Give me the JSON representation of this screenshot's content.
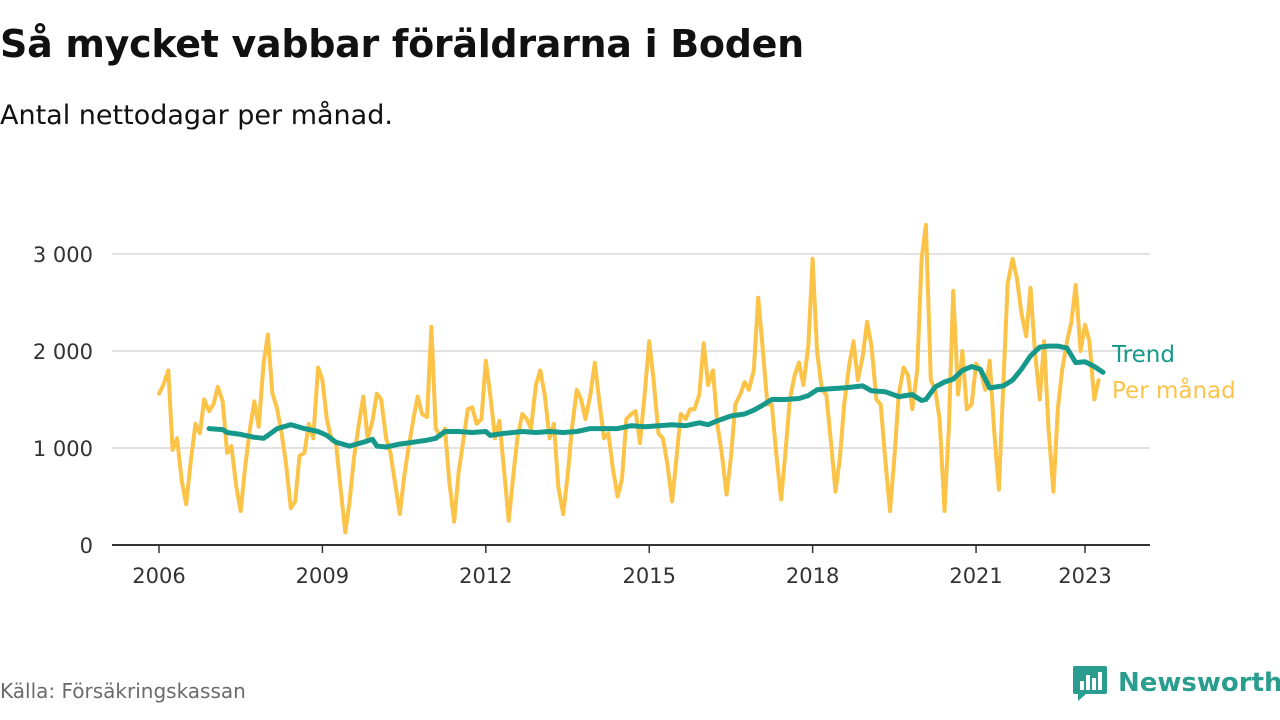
{
  "header": {
    "title": "Så mycket vabbar föräldrarna i Boden",
    "subtitle": "Antal nettodagar per månad."
  },
  "footer": {
    "source": "Källa: Försäkringskassan",
    "brand": "Newsworthy"
  },
  "colors": {
    "monthly": "#fbc348",
    "trend": "#16998a",
    "grid": "#d9d9d9",
    "axis": "#333333",
    "tick_text": "#333333",
    "brand": "#2a9d8f"
  },
  "chart_data": {
    "type": "line",
    "title": "Så mycket vabbar föräldrarna i Boden",
    "subtitle": "Antal nettodagar per månad.",
    "xlim": [
      2006.0,
      2024.0
    ],
    "ylim": [
      0,
      3300
    ],
    "x_ticks": [
      2006,
      2009,
      2012,
      2015,
      2018,
      2021,
      2023
    ],
    "x_tick_labels": [
      "2006",
      "2009",
      "2012",
      "2015",
      "2018",
      "2021",
      "2023"
    ],
    "y_ticks": [
      0,
      1000,
      2000,
      3000
    ],
    "y_tick_labels": [
      "0",
      "1 000",
      "2 000",
      "3 000"
    ],
    "grid": true,
    "legend": "line-end labels",
    "series": [
      {
        "name": "Per månad",
        "color": "#fbc348",
        "points": [
          [
            2006.0,
            1560
          ],
          [
            2006.08,
            1650
          ],
          [
            2006.17,
            1800
          ],
          [
            2006.25,
            980
          ],
          [
            2006.33,
            1100
          ],
          [
            2006.42,
            650
          ],
          [
            2006.5,
            420
          ],
          [
            2006.58,
            850
          ],
          [
            2006.67,
            1250
          ],
          [
            2006.75,
            1150
          ],
          [
            2006.83,
            1500
          ],
          [
            2006.92,
            1380
          ],
          [
            2007.0,
            1450
          ],
          [
            2007.08,
            1630
          ],
          [
            2007.17,
            1480
          ],
          [
            2007.25,
            950
          ],
          [
            2007.33,
            1020
          ],
          [
            2007.42,
            600
          ],
          [
            2007.5,
            350
          ],
          [
            2007.58,
            800
          ],
          [
            2007.67,
            1200
          ],
          [
            2007.75,
            1480
          ],
          [
            2007.83,
            1220
          ],
          [
            2007.92,
            1870
          ],
          [
            2008.0,
            2170
          ],
          [
            2008.08,
            1570
          ],
          [
            2008.17,
            1400
          ],
          [
            2008.25,
            1150
          ],
          [
            2008.33,
            850
          ],
          [
            2008.42,
            380
          ],
          [
            2008.5,
            450
          ],
          [
            2008.58,
            920
          ],
          [
            2008.67,
            950
          ],
          [
            2008.75,
            1250
          ],
          [
            2008.83,
            1100
          ],
          [
            2008.92,
            1830
          ],
          [
            2009.0,
            1700
          ],
          [
            2009.08,
            1300
          ],
          [
            2009.17,
            1080
          ],
          [
            2009.25,
            1050
          ],
          [
            2009.33,
            600
          ],
          [
            2009.42,
            130
          ],
          [
            2009.5,
            450
          ],
          [
            2009.58,
            900
          ],
          [
            2009.67,
            1250
          ],
          [
            2009.75,
            1530
          ],
          [
            2009.83,
            1100
          ],
          [
            2009.92,
            1280
          ],
          [
            2010.0,
            1560
          ],
          [
            2010.08,
            1500
          ],
          [
            2010.17,
            1100
          ],
          [
            2010.25,
            950
          ],
          [
            2010.33,
            650
          ],
          [
            2010.42,
            320
          ],
          [
            2010.5,
            700
          ],
          [
            2010.58,
            1000
          ],
          [
            2010.67,
            1300
          ],
          [
            2010.75,
            1530
          ],
          [
            2010.83,
            1350
          ],
          [
            2010.92,
            1320
          ],
          [
            2011.0,
            2250
          ],
          [
            2011.08,
            1200
          ],
          [
            2011.17,
            1120
          ],
          [
            2011.25,
            1200
          ],
          [
            2011.33,
            650
          ],
          [
            2011.42,
            240
          ],
          [
            2011.5,
            750
          ],
          [
            2011.58,
            1050
          ],
          [
            2011.67,
            1400
          ],
          [
            2011.75,
            1420
          ],
          [
            2011.83,
            1250
          ],
          [
            2011.92,
            1300
          ],
          [
            2012.0,
            1900
          ],
          [
            2012.08,
            1550
          ],
          [
            2012.17,
            1100
          ],
          [
            2012.25,
            1280
          ],
          [
            2012.33,
            800
          ],
          [
            2012.42,
            250
          ],
          [
            2012.5,
            700
          ],
          [
            2012.58,
            1100
          ],
          [
            2012.67,
            1350
          ],
          [
            2012.75,
            1300
          ],
          [
            2012.83,
            1200
          ],
          [
            2012.92,
            1650
          ],
          [
            2013.0,
            1800
          ],
          [
            2013.08,
            1550
          ],
          [
            2013.17,
            1100
          ],
          [
            2013.25,
            1250
          ],
          [
            2013.33,
            600
          ],
          [
            2013.42,
            320
          ],
          [
            2013.5,
            700
          ],
          [
            2013.58,
            1200
          ],
          [
            2013.67,
            1600
          ],
          [
            2013.75,
            1500
          ],
          [
            2013.83,
            1300
          ],
          [
            2013.92,
            1550
          ],
          [
            2014.0,
            1880
          ],
          [
            2014.08,
            1500
          ],
          [
            2014.17,
            1100
          ],
          [
            2014.25,
            1150
          ],
          [
            2014.33,
            800
          ],
          [
            2014.42,
            500
          ],
          [
            2014.5,
            680
          ],
          [
            2014.58,
            1300
          ],
          [
            2014.67,
            1350
          ],
          [
            2014.75,
            1380
          ],
          [
            2014.83,
            1050
          ],
          [
            2014.92,
            1580
          ],
          [
            2015.0,
            2100
          ],
          [
            2015.08,
            1700
          ],
          [
            2015.17,
            1150
          ],
          [
            2015.25,
            1100
          ],
          [
            2015.33,
            850
          ],
          [
            2015.42,
            450
          ],
          [
            2015.5,
            900
          ],
          [
            2015.58,
            1350
          ],
          [
            2015.67,
            1300
          ],
          [
            2015.75,
            1400
          ],
          [
            2015.83,
            1400
          ],
          [
            2015.92,
            1550
          ],
          [
            2016.0,
            2080
          ],
          [
            2016.08,
            1650
          ],
          [
            2016.17,
            1800
          ],
          [
            2016.25,
            1250
          ],
          [
            2016.33,
            950
          ],
          [
            2016.42,
            520
          ],
          [
            2016.5,
            900
          ],
          [
            2016.58,
            1450
          ],
          [
            2016.67,
            1550
          ],
          [
            2016.75,
            1680
          ],
          [
            2016.83,
            1600
          ],
          [
            2016.92,
            1800
          ],
          [
            2017.0,
            2550
          ],
          [
            2017.08,
            2050
          ],
          [
            2017.17,
            1450
          ],
          [
            2017.25,
            1450
          ],
          [
            2017.33,
            950
          ],
          [
            2017.42,
            470
          ],
          [
            2017.5,
            950
          ],
          [
            2017.58,
            1500
          ],
          [
            2017.67,
            1750
          ],
          [
            2017.75,
            1880
          ],
          [
            2017.83,
            1650
          ],
          [
            2017.92,
            2050
          ],
          [
            2018.0,
            2950
          ],
          [
            2018.08,
            2000
          ],
          [
            2018.17,
            1600
          ],
          [
            2018.25,
            1550
          ],
          [
            2018.33,
            1100
          ],
          [
            2018.42,
            550
          ],
          [
            2018.5,
            900
          ],
          [
            2018.58,
            1450
          ],
          [
            2018.67,
            1850
          ],
          [
            2018.75,
            2100
          ],
          [
            2018.83,
            1700
          ],
          [
            2018.92,
            1950
          ],
          [
            2019.0,
            2300
          ],
          [
            2019.08,
            2050
          ],
          [
            2019.17,
            1500
          ],
          [
            2019.25,
            1450
          ],
          [
            2019.33,
            900
          ],
          [
            2019.42,
            350
          ],
          [
            2019.5,
            900
          ],
          [
            2019.58,
            1550
          ],
          [
            2019.67,
            1830
          ],
          [
            2019.75,
            1750
          ],
          [
            2019.83,
            1400
          ],
          [
            2019.92,
            1800
          ],
          [
            2020.0,
            2950
          ],
          [
            2020.08,
            3300
          ],
          [
            2020.17,
            1700
          ],
          [
            2020.25,
            1600
          ],
          [
            2020.33,
            1300
          ],
          [
            2020.42,
            350
          ],
          [
            2020.5,
            1200
          ],
          [
            2020.58,
            2620
          ],
          [
            2020.67,
            1550
          ],
          [
            2020.75,
            2000
          ],
          [
            2020.83,
            1400
          ],
          [
            2020.92,
            1450
          ],
          [
            2021.0,
            1870
          ],
          [
            2021.08,
            1800
          ],
          [
            2021.17,
            1600
          ],
          [
            2021.25,
            1900
          ],
          [
            2021.33,
            1200
          ],
          [
            2021.42,
            570
          ],
          [
            2021.5,
            1650
          ],
          [
            2021.58,
            2700
          ],
          [
            2021.67,
            2950
          ],
          [
            2021.75,
            2750
          ],
          [
            2021.83,
            2400
          ],
          [
            2021.92,
            2150
          ],
          [
            2022.0,
            2650
          ],
          [
            2022.08,
            2000
          ],
          [
            2022.17,
            1500
          ],
          [
            2022.25,
            2100
          ],
          [
            2022.33,
            1200
          ],
          [
            2022.42,
            550
          ],
          [
            2022.5,
            1400
          ],
          [
            2022.58,
            1800
          ],
          [
            2022.67,
            2100
          ],
          [
            2022.75,
            2300
          ],
          [
            2022.83,
            2680
          ],
          [
            2022.92,
            2000
          ],
          [
            2023.0,
            2270
          ],
          [
            2023.08,
            2100
          ],
          [
            2023.17,
            1500
          ],
          [
            2023.25,
            1700
          ]
        ]
      },
      {
        "name": "Trend",
        "color": "#16998a",
        "points": [
          [
            2006.92,
            1200
          ],
          [
            2007.17,
            1190
          ],
          [
            2007.25,
            1160
          ],
          [
            2007.5,
            1140
          ],
          [
            2007.75,
            1110
          ],
          [
            2007.92,
            1100
          ],
          [
            2008.0,
            1130
          ],
          [
            2008.17,
            1200
          ],
          [
            2008.42,
            1240
          ],
          [
            2008.67,
            1200
          ],
          [
            2008.92,
            1170
          ],
          [
            2009.08,
            1130
          ],
          [
            2009.25,
            1060
          ],
          [
            2009.5,
            1020
          ],
          [
            2009.75,
            1060
          ],
          [
            2009.92,
            1090
          ],
          [
            2010.0,
            1020
          ],
          [
            2010.17,
            1010
          ],
          [
            2010.42,
            1040
          ],
          [
            2010.67,
            1060
          ],
          [
            2010.92,
            1080
          ],
          [
            2011.08,
            1100
          ],
          [
            2011.25,
            1170
          ],
          [
            2011.5,
            1170
          ],
          [
            2011.75,
            1160
          ],
          [
            2012.0,
            1170
          ],
          [
            2012.08,
            1130
          ],
          [
            2012.33,
            1150
          ],
          [
            2012.67,
            1170
          ],
          [
            2012.92,
            1160
          ],
          [
            2013.17,
            1170
          ],
          [
            2013.42,
            1160
          ],
          [
            2013.67,
            1170
          ],
          [
            2013.92,
            1200
          ],
          [
            2014.17,
            1200
          ],
          [
            2014.42,
            1200
          ],
          [
            2014.67,
            1230
          ],
          [
            2014.92,
            1220
          ],
          [
            2015.17,
            1230
          ],
          [
            2015.42,
            1240
          ],
          [
            2015.67,
            1230
          ],
          [
            2015.92,
            1260
          ],
          [
            2016.08,
            1240
          ],
          [
            2016.25,
            1280
          ],
          [
            2016.5,
            1330
          ],
          [
            2016.75,
            1350
          ],
          [
            2016.92,
            1390
          ],
          [
            2017.08,
            1440
          ],
          [
            2017.25,
            1500
          ],
          [
            2017.5,
            1500
          ],
          [
            2017.75,
            1510
          ],
          [
            2017.92,
            1540
          ],
          [
            2018.08,
            1600
          ],
          [
            2018.33,
            1610
          ],
          [
            2018.58,
            1620
          ],
          [
            2018.75,
            1630
          ],
          [
            2018.92,
            1640
          ],
          [
            2019.08,
            1590
          ],
          [
            2019.33,
            1580
          ],
          [
            2019.58,
            1530
          ],
          [
            2019.83,
            1550
          ],
          [
            2020.0,
            1490
          ],
          [
            2020.08,
            1500
          ],
          [
            2020.25,
            1630
          ],
          [
            2020.42,
            1680
          ],
          [
            2020.58,
            1710
          ],
          [
            2020.75,
            1800
          ],
          [
            2020.92,
            1840
          ],
          [
            2021.08,
            1810
          ],
          [
            2021.25,
            1620
          ],
          [
            2021.5,
            1640
          ],
          [
            2021.67,
            1700
          ],
          [
            2021.83,
            1810
          ],
          [
            2022.0,
            1950
          ],
          [
            2022.17,
            2040
          ],
          [
            2022.33,
            2050
          ],
          [
            2022.5,
            2050
          ],
          [
            2022.67,
            2030
          ],
          [
            2022.83,
            1880
          ],
          [
            2023.0,
            1890
          ],
          [
            2023.17,
            1840
          ],
          [
            2023.33,
            1780
          ]
        ]
      }
    ]
  }
}
